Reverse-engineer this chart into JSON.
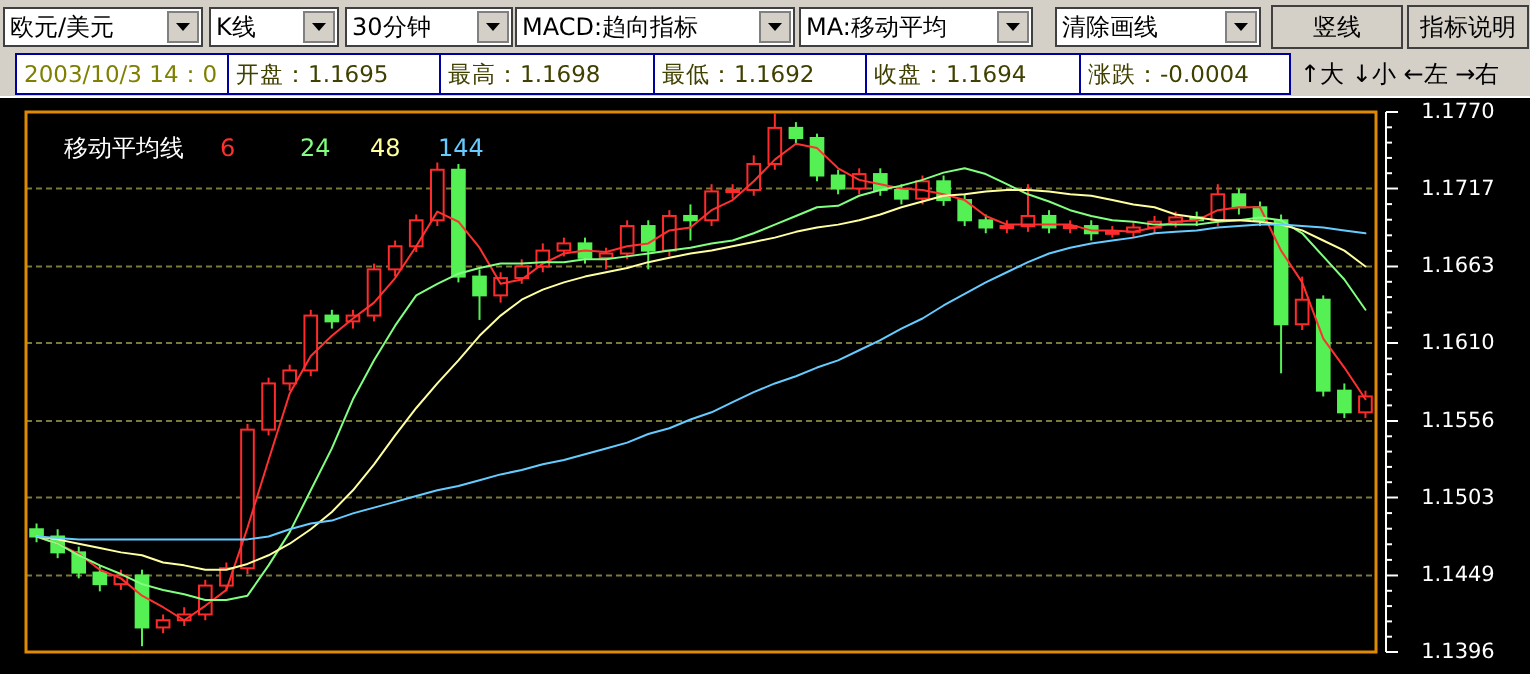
{
  "chart_data": {
    "type": "candlestick",
    "annotations": [
      "欧元/美元",
      "K线",
      "30分钟",
      "MACD:趋向指标",
      "MA:移动平均",
      "清除画线",
      "竖线",
      "指标说明",
      "2003/10/3 14：0",
      "开盘：1.1695",
      "最高：1.1698",
      "最低：1.1692",
      "收盘：1.1694",
      "涨跌：-0.0004",
      "↑大 ↓小 ←左 →右"
    ],
    "legend_title": "移动平均线",
    "legend": "top left",
    "grid": "y",
    "tick_labels": "y",
    "ylim": [
      1.1396,
      1.177
    ],
    "yticks": [
      1.1396,
      1.1449,
      1.1503,
      1.1556,
      {
        "value": 1.161,
        "label": "1.1610"
      },
      1.1663,
      1.1717,
      {
        "value": 1.177,
        "label": "1.1770"
      }
    ],
    "categories": [
      null,
      null,
      null,
      null,
      null,
      null,
      null,
      null,
      null,
      null,
      null,
      null,
      null,
      null,
      null,
      null,
      null,
      null,
      null,
      null,
      null,
      null,
      null,
      null,
      null,
      null,
      null,
      null,
      null,
      null,
      null,
      null,
      null,
      null,
      null,
      null,
      null,
      null,
      null,
      null,
      null,
      null,
      null,
      null,
      null,
      null,
      null,
      null,
      null,
      null,
      null,
      null,
      null,
      null,
      null,
      null,
      null,
      null,
      null,
      null,
      null,
      null,
      null,
      null
    ],
    "ohlc": [
      [
        1.1481,
        1.1485,
        1.1472,
        1.1476
      ],
      [
        1.1476,
        1.1481,
        1.1461,
        1.1465
      ],
      [
        1.1465,
        1.1469,
        1.1447,
        1.1451
      ],
      [
        1.1451,
        1.1456,
        1.1438,
        1.1443
      ],
      [
        1.1443,
        1.1453,
        1.1439,
        1.1449
      ],
      [
        1.1449,
        1.1453,
        1.14,
        1.1413
      ],
      [
        1.1413,
        1.1422,
        1.1409,
        1.1418
      ],
      [
        1.1418,
        1.1427,
        1.1414,
        1.1422
      ],
      [
        1.1422,
        1.1446,
        1.1418,
        1.1442
      ],
      [
        1.1442,
        1.1458,
        1.1438,
        1.1454
      ],
      [
        1.1454,
        1.1554,
        1.145,
        1.155
      ],
      [
        1.155,
        1.1586,
        1.1546,
        1.1582
      ],
      [
        1.1582,
        1.1595,
        1.1577,
        1.1591
      ],
      [
        1.1591,
        1.1633,
        1.1587,
        1.1629
      ],
      [
        1.1629,
        1.1633,
        1.162,
        1.1625
      ],
      [
        1.1625,
        1.1633,
        1.162,
        1.1629
      ],
      [
        1.1629,
        1.1665,
        1.1625,
        1.1661
      ],
      [
        1.1661,
        1.1681,
        1.1656,
        1.1677
      ],
      [
        1.1677,
        1.1699,
        1.1673,
        1.1695
      ],
      [
        1.1695,
        1.1735,
        1.1691,
        1.173
      ],
      [
        1.173,
        1.1734,
        1.1652,
        1.1656
      ],
      [
        1.1656,
        1.1661,
        1.1626,
        1.1643
      ],
      [
        1.1643,
        1.1659,
        1.1638,
        1.1655
      ],
      [
        1.1655,
        1.1668,
        1.1651,
        1.1663
      ],
      [
        1.1663,
        1.1679,
        1.1659,
        1.1674
      ],
      [
        1.1674,
        1.1683,
        1.167,
        1.1679
      ],
      [
        1.1679,
        1.1683,
        1.1665,
        1.1669
      ],
      [
        1.1669,
        1.1676,
        1.1661,
        1.1672
      ],
      [
        1.1672,
        1.1695,
        1.1668,
        1.1691
      ],
      [
        1.1691,
        1.1695,
        1.1661,
        1.1674
      ],
      [
        1.1674,
        1.1702,
        1.167,
        1.1698
      ],
      [
        1.1698,
        1.1706,
        1.1681,
        1.1695
      ],
      [
        1.1695,
        1.172,
        1.1691,
        1.1715
      ],
      [
        1.1715,
        1.172,
        1.171,
        1.1716
      ],
      [
        1.1716,
        1.174,
        1.1712,
        1.1734
      ],
      [
        1.1734,
        1.1769,
        1.173,
        1.1759
      ],
      [
        1.1759,
        1.1763,
        1.1748,
        1.1752
      ],
      [
        1.1752,
        1.1755,
        1.1722,
        1.1726
      ],
      [
        1.1726,
        1.173,
        1.1713,
        1.1717
      ],
      [
        1.1717,
        1.1731,
        1.1713,
        1.1727
      ],
      [
        1.1727,
        1.1731,
        1.1712,
        1.1716
      ],
      [
        1.1716,
        1.172,
        1.1706,
        1.171
      ],
      [
        1.171,
        1.1726,
        1.1706,
        1.1722
      ],
      [
        1.1722,
        1.1726,
        1.1705,
        1.1709
      ],
      [
        1.1709,
        1.1713,
        1.1691,
        1.1695
      ],
      [
        1.1695,
        1.1699,
        1.1686,
        1.169
      ],
      [
        1.169,
        1.1695,
        1.1686,
        1.1691
      ],
      [
        1.1691,
        1.172,
        1.1687,
        1.1698
      ],
      [
        1.1698,
        1.1702,
        1.1686,
        1.169
      ],
      [
        1.169,
        1.1695,
        1.1686,
        1.1691
      ],
      [
        1.1691,
        1.1695,
        1.1681,
        1.1686
      ],
      [
        1.1686,
        1.1691,
        1.1683,
        1.1687
      ],
      [
        1.1687,
        1.1694,
        1.1683,
        1.169
      ],
      [
        1.169,
        1.1698,
        1.1686,
        1.1694
      ],
      [
        1.1694,
        1.1701,
        1.169,
        1.1697
      ],
      [
        1.1697,
        1.1701,
        1.1691,
        1.1695
      ],
      [
        1.1695,
        1.172,
        1.1691,
        1.1713
      ],
      [
        1.1713,
        1.1717,
        1.1699,
        1.1704
      ],
      [
        1.1704,
        1.1708,
        1.1691,
        1.1695
      ],
      [
        1.1695,
        1.1699,
        1.1589,
        1.1623
      ],
      [
        1.1623,
        1.1656,
        1.1619,
        1.164
      ],
      [
        1.164,
        1.1643,
        1.1573,
        1.1577
      ],
      [
        1.1577,
        1.1582,
        1.1558,
        1.1562
      ],
      [
        1.1562,
        1.1577,
        1.1558,
        1.1573
      ]
    ],
    "series": [
      {
        "name": "6",
        "type": "line",
        "color": "#ff3030",
        "values": [
          1.1476,
          1.1471,
          1.1464,
          1.1453,
          1.1447,
          1.1435,
          1.1427,
          1.1418,
          1.1428,
          1.1439,
          1.1482,
          1.1529,
          1.1575,
          1.1601,
          1.1615,
          1.1627,
          1.1638,
          1.1655,
          1.1677,
          1.1701,
          1.1694,
          1.1676,
          1.1651,
          1.1654,
          1.1665,
          1.1672,
          1.1674,
          1.1673,
          1.1677,
          1.1679,
          1.1688,
          1.169,
          1.1702,
          1.1709,
          1.1722,
          1.1737,
          1.1748,
          1.1745,
          1.1731,
          1.1723,
          1.172,
          1.1717,
          1.1716,
          1.1713,
          1.1709,
          1.1698,
          1.1692,
          1.1692,
          1.1692,
          1.1692,
          1.1688,
          1.1688,
          1.1687,
          1.169,
          1.1694,
          1.1695,
          1.1702,
          1.1704,
          1.1704,
          1.1674,
          1.1652,
          1.1613,
          1.1593,
          1.1571
        ]
      },
      {
        "name": "24",
        "type": "line",
        "color": "#80ff80",
        "values": [
          1.1476,
          1.1471,
          1.1463,
          1.1456,
          1.145,
          1.1443,
          1.1439,
          1.1436,
          1.1432,
          1.1432,
          1.1435,
          1.1456,
          1.1479,
          1.1508,
          1.1537,
          1.1571,
          1.1598,
          1.1622,
          1.1643,
          1.1651,
          1.1658,
          1.1662,
          1.1665,
          1.1665,
          1.1666,
          1.1666,
          1.1668,
          1.1668,
          1.167,
          1.1672,
          1.1674,
          1.1676,
          1.1679,
          1.1681,
          1.1686,
          1.1692,
          1.1698,
          1.1704,
          1.1705,
          1.1712,
          1.1716,
          1.1719,
          1.1723,
          1.1728,
          1.1731,
          1.1727,
          1.172,
          1.1713,
          1.1708,
          1.1702,
          1.1698,
          1.1695,
          1.1694,
          1.1692,
          1.1692,
          1.1692,
          1.1694,
          1.1695,
          1.1697,
          1.1695,
          1.1686,
          1.167,
          1.1654,
          1.1633
        ]
      },
      {
        "name": "48",
        "type": "line",
        "color": "#ffffa0",
        "values": [
          1.1476,
          1.1474,
          1.1471,
          1.1468,
          1.1465,
          1.1463,
          1.1458,
          1.1456,
          1.1453,
          1.1453,
          1.1457,
          1.1463,
          1.1471,
          1.1481,
          1.1493,
          1.1508,
          1.1526,
          1.1546,
          1.1565,
          1.1582,
          1.1598,
          1.1615,
          1.1629,
          1.164,
          1.1647,
          1.1652,
          1.1656,
          1.1659,
          1.1662,
          1.1666,
          1.1669,
          1.1672,
          1.1674,
          1.1677,
          1.168,
          1.1683,
          1.1687,
          1.169,
          1.1692,
          1.1695,
          1.1699,
          1.1704,
          1.1708,
          1.1712,
          1.1713,
          1.1715,
          1.1716,
          1.1716,
          1.1715,
          1.1713,
          1.1712,
          1.1709,
          1.1706,
          1.1704,
          1.1699,
          1.1697,
          1.1695,
          1.1695,
          1.1694,
          1.1692,
          1.1688,
          1.1681,
          1.1674,
          1.1663
        ]
      },
      {
        "name": "144",
        "type": "line",
        "color": "#66ccff",
        "values": [
          1.1476,
          1.1475,
          1.1474,
          1.1474,
          1.1474,
          1.1474,
          1.1474,
          1.1474,
          1.1474,
          1.1474,
          1.1474,
          1.1476,
          1.1481,
          1.1485,
          1.1487,
          1.1492,
          1.1496,
          1.15,
          1.1504,
          1.1508,
          1.1511,
          1.1515,
          1.1519,
          1.1522,
          1.1526,
          1.1529,
          1.1533,
          1.1537,
          1.1541,
          1.1547,
          1.1551,
          1.1557,
          1.1562,
          1.1569,
          1.1576,
          1.1582,
          1.1587,
          1.1593,
          1.1598,
          1.1605,
          1.1612,
          1.162,
          1.1627,
          1.1636,
          1.1644,
          1.1652,
          1.1659,
          1.1666,
          1.1672,
          1.1676,
          1.1679,
          1.1681,
          1.1683,
          1.1686,
          1.1687,
          1.1688,
          1.169,
          1.1691,
          1.1692,
          1.1692,
          1.1691,
          1.169,
          1.1688,
          1.1686
        ]
      }
    ]
  }
}
